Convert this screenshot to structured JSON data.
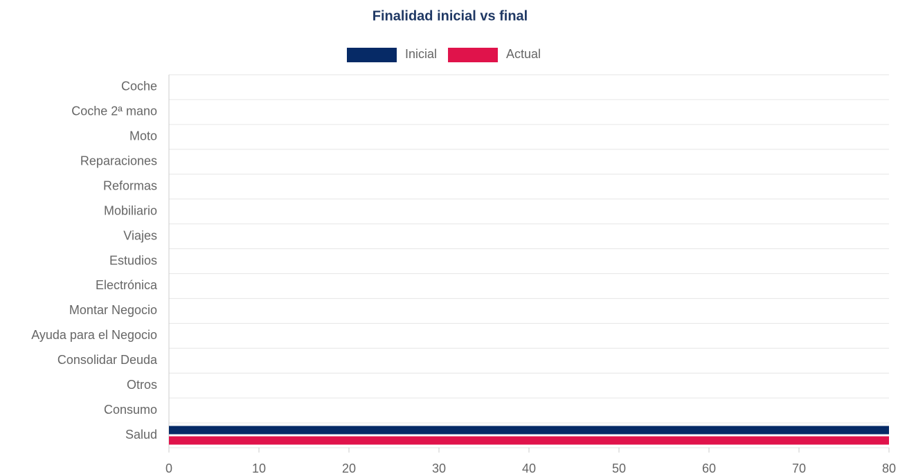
{
  "chart_data": {
    "type": "hbar",
    "title": "Finalidad inicial vs final",
    "categories": [
      "Coche",
      "Coche 2ª mano",
      "Moto",
      "Reparaciones",
      "Reformas",
      "Mobiliario",
      "Viajes",
      "Estudios",
      "Electrónica",
      "Montar Negocio",
      "Ayuda para el Negocio",
      "Consolidar Deuda",
      "Otros",
      "Consumo",
      "Salud"
    ],
    "series": [
      {
        "name": "Inicial",
        "color": "#062a66",
        "values": [
          0,
          0,
          0,
          0,
          0,
          0,
          0,
          0,
          0,
          0,
          0,
          0,
          0,
          0,
          80
        ]
      },
      {
        "name": "Actual",
        "color": "#e0134b",
        "values": [
          0,
          0,
          0,
          0,
          0,
          0,
          0,
          0,
          0,
          0,
          0,
          0,
          0,
          0,
          80
        ]
      }
    ],
    "xlim": [
      0,
      80
    ],
    "xticks": [
      0,
      10,
      20,
      30,
      40,
      50,
      60,
      70,
      80
    ],
    "legend": "top"
  }
}
